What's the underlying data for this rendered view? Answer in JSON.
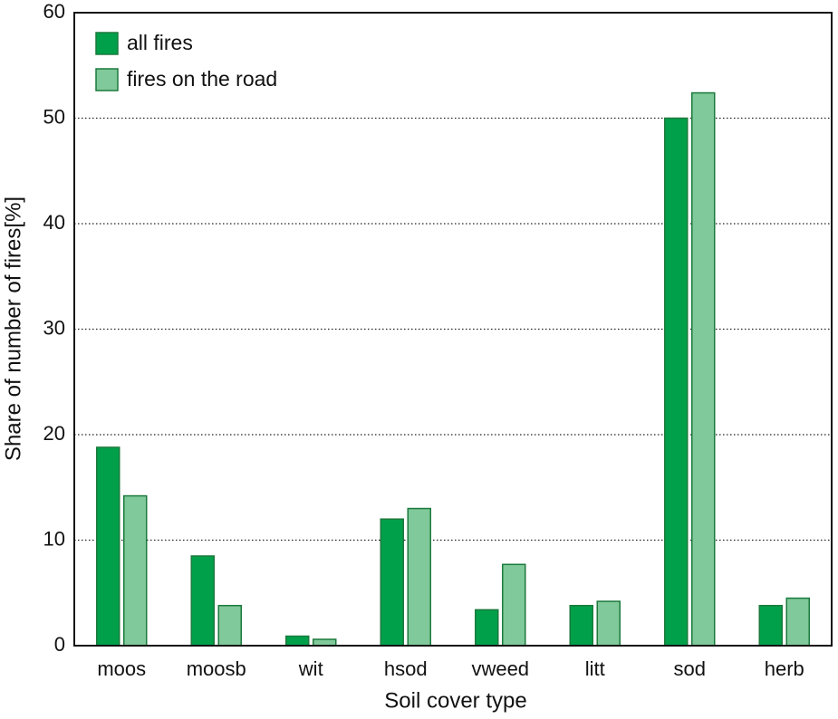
{
  "chart_data": {
    "type": "bar",
    "x_label": "Soil cover type",
    "y_label": "Share of number of fires[%]",
    "categories": [
      "moos",
      "moosb",
      "wit",
      "hsod",
      "vweed",
      "litt",
      "sod",
      "herb"
    ],
    "series": [
      {
        "name": "all fires",
        "color": "#00a04a",
        "values": [
          18.8,
          8.5,
          0.9,
          12.0,
          3.4,
          3.8,
          50.0,
          3.8
        ]
      },
      {
        "name": "fires on the road",
        "color": "#80c99a",
        "values": [
          14.2,
          3.8,
          0.6,
          13.0,
          7.7,
          4.2,
          52.4,
          4.5
        ]
      }
    ],
    "ylim": [
      0,
      60
    ],
    "yticks": [
      0,
      10,
      20,
      30,
      40,
      50,
      60
    ],
    "grid": true,
    "legend": "upper left",
    "edge_color": "#1b7a3c"
  }
}
